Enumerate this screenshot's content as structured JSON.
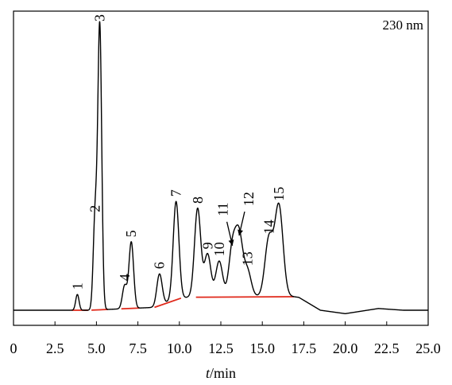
{
  "chart_data": {
    "type": "line",
    "title": "",
    "annotation": "230 nm",
    "xlabel": {
      "italic": "t",
      "rest": "/min"
    },
    "ylabel": "",
    "xlim": [
      0,
      25
    ],
    "xticks": [
      "0",
      "2.5",
      "5.0",
      "7.5",
      "10.0",
      "12.5",
      "15.0",
      "17.5",
      "20.0",
      "22.5",
      "25.0"
    ],
    "yticks": [],
    "grid": false,
    "legend": "none",
    "baseline": [
      [
        0,
        0.0
      ],
      [
        2.0,
        0.0
      ],
      [
        4.6,
        0.0
      ],
      [
        8.5,
        0.01
      ],
      [
        9.8,
        0.04
      ],
      [
        10.5,
        0.045
      ],
      [
        16.5,
        0.05
      ],
      [
        17.2,
        0.045
      ],
      [
        18.5,
        0.0
      ],
      [
        20.0,
        -0.012
      ],
      [
        22.0,
        0.006
      ],
      [
        23.5,
        0.0
      ],
      [
        25.0,
        0.0
      ]
    ],
    "peaks": [
      {
        "label": "1",
        "rt": 3.85,
        "height": 0.055
      },
      {
        "label": "2",
        "rt": 4.92,
        "height": 0.325
      },
      {
        "label": "3",
        "rt": 5.2,
        "height": 0.99
      },
      {
        "label": "4",
        "rt": 6.7,
        "height": 0.08
      },
      {
        "label": "5",
        "rt": 7.1,
        "height": 0.232
      },
      {
        "label": "6",
        "rt": 8.8,
        "height": 0.11
      },
      {
        "label": "7",
        "rt": 9.8,
        "height": 0.34
      },
      {
        "label": "8",
        "rt": 11.1,
        "height": 0.31
      },
      {
        "label": "9",
        "rt": 11.7,
        "height": 0.15
      },
      {
        "label": "10",
        "rt": 12.4,
        "height": 0.125
      },
      {
        "label": "11",
        "rt": 13.2,
        "height": 0.17
      },
      {
        "label": "12",
        "rt": 13.6,
        "height": 0.205
      },
      {
        "label": "13",
        "rt": 14.1,
        "height": 0.09
      },
      {
        "label": "14",
        "rt": 15.4,
        "height": 0.2
      },
      {
        "label": "15",
        "rt": 16.0,
        "height": 0.315
      }
    ],
    "integration_baselines": [
      {
        "x": [
          3.5,
          4.5
        ],
        "color": "#e0281a"
      },
      {
        "x": [
          4.7,
          5.7
        ],
        "color": "#e0281a"
      },
      {
        "x": [
          6.5,
          7.6
        ],
        "color": "#e0281a"
      },
      {
        "x": [
          8.5,
          10.1
        ],
        "color": "#e0281a"
      },
      {
        "x": [
          11.0,
          16.9
        ],
        "color": "#e0281a"
      }
    ],
    "colors": {
      "trace": "#000000",
      "integration": "#e0281a",
      "axes": "#000000"
    }
  }
}
